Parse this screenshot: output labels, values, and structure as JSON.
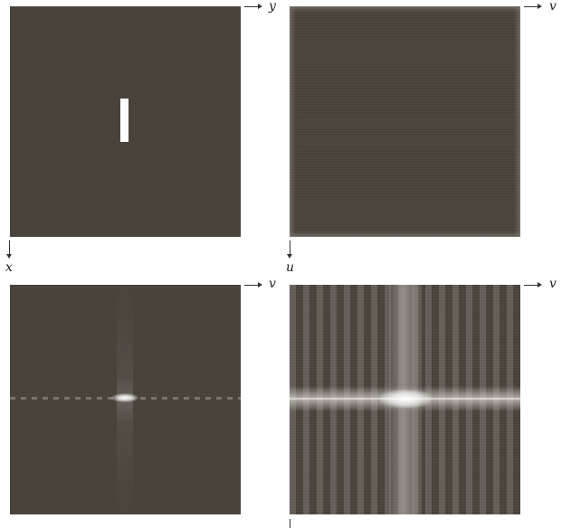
{
  "labels": {
    "p1_horizontal": "y",
    "p1_vertical": "x",
    "p2_horizontal": "v",
    "p2_vertical": "u",
    "p3_horizontal": "v",
    "p4_horizontal": "v"
  },
  "colors": {
    "background": "#4a433c",
    "bright": "#ffffff",
    "axis": "#333333"
  }
}
